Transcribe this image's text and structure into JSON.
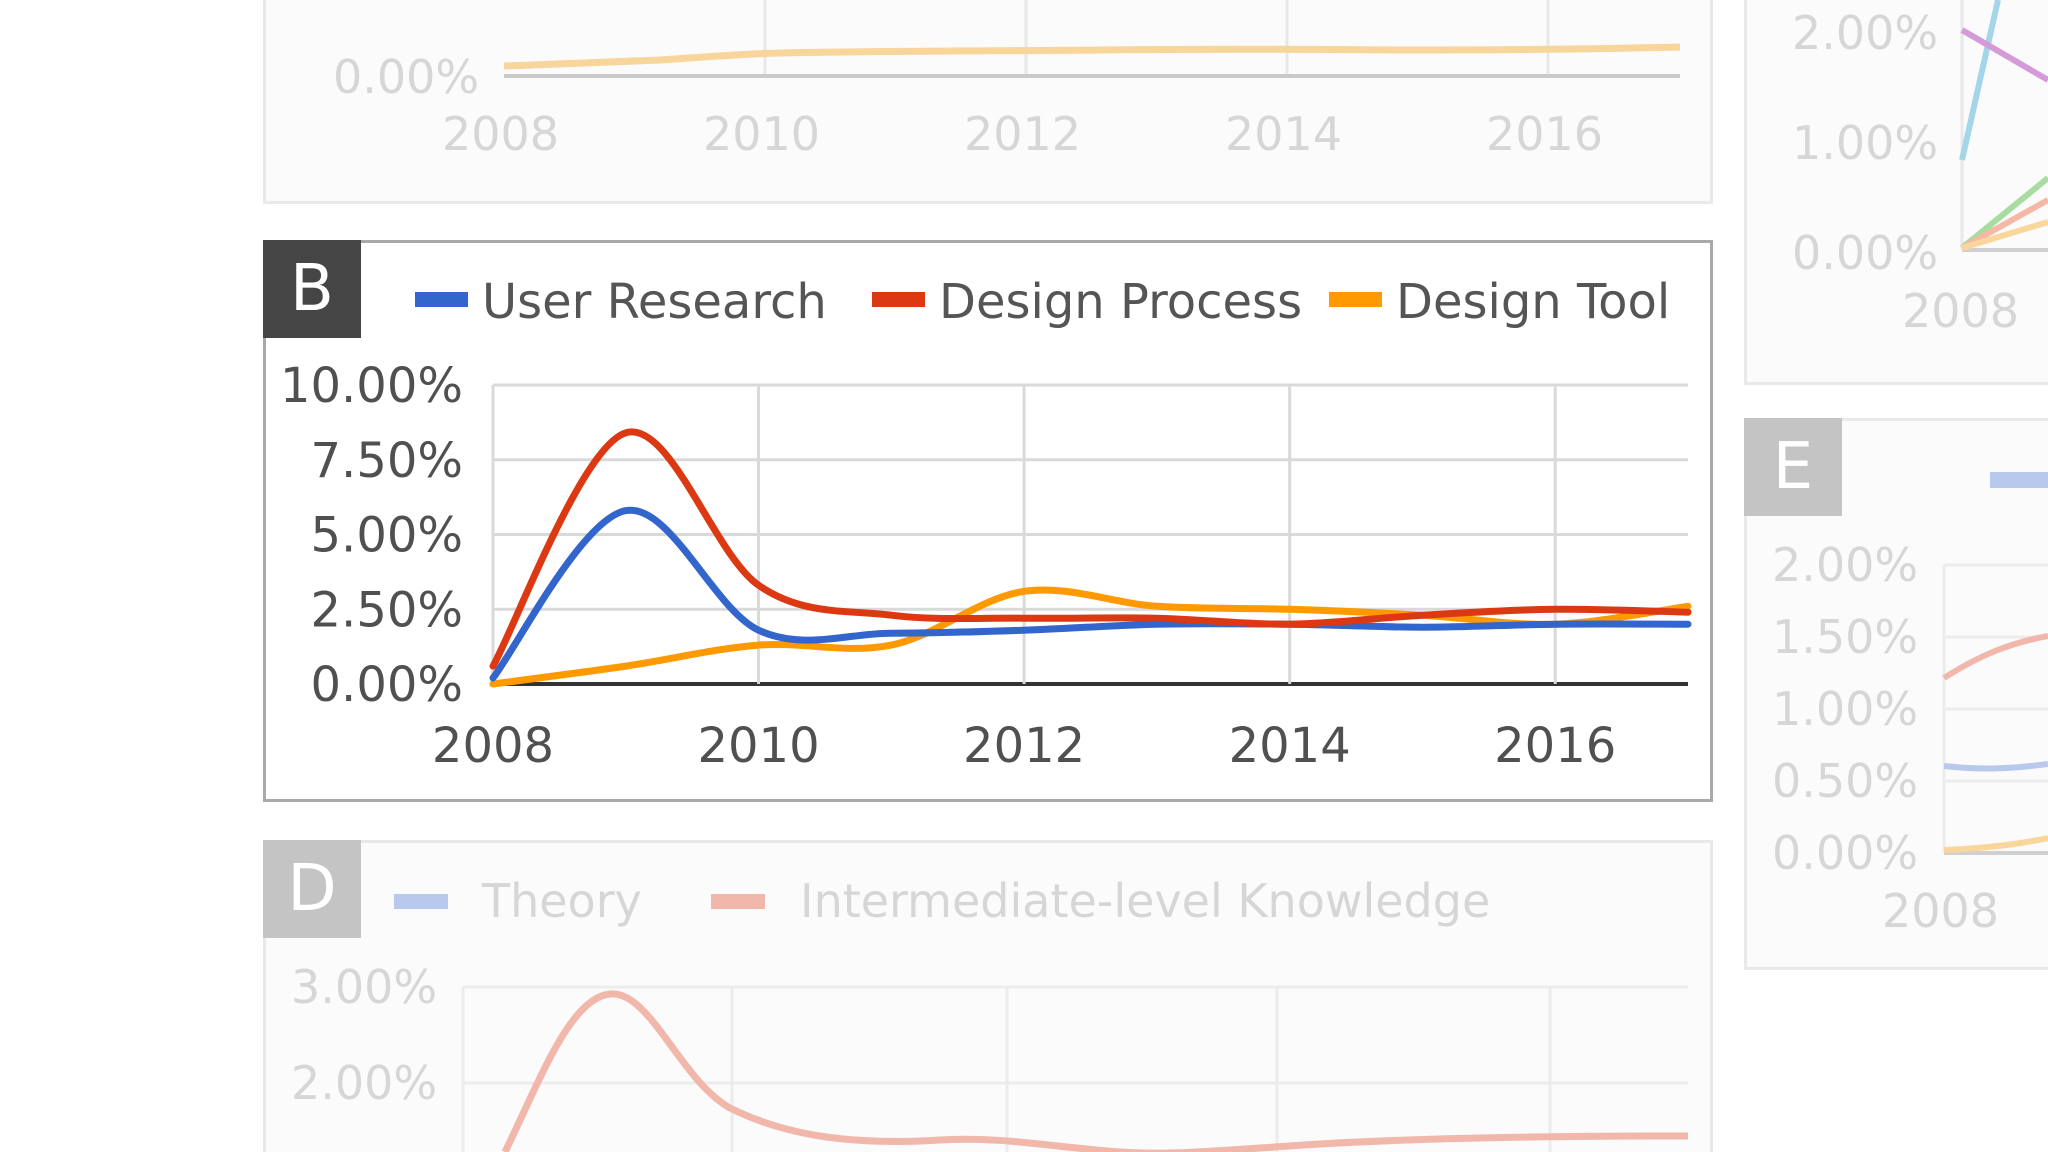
{
  "panel_a": {
    "ytick": "0.00%",
    "xticks": [
      "2008",
      "2010",
      "2012",
      "2014",
      "2016"
    ],
    "color": "#f8d59a"
  },
  "panel_b": {
    "letter": "B"
  },
  "panel_c": {
    "yticks": [
      "2.00%",
      "1.00%",
      "0.00%"
    ],
    "xtick": "2008"
  },
  "panel_d": {
    "letter": "D",
    "legend": [
      {
        "label": "Theory",
        "color": "#b9c9ee"
      },
      {
        "label": "Intermediate-level Knowledge",
        "color": "#f1b7ab"
      }
    ],
    "yticks": [
      "3.00%",
      "2.00%"
    ]
  },
  "panel_e": {
    "letter": "E",
    "yticks": [
      "2.00%",
      "1.50%",
      "1.00%",
      "0.50%",
      "0.00%"
    ],
    "xtick": "2008"
  },
  "chart_data": {
    "type": "line",
    "x": [
      2008,
      2009,
      2010,
      2011,
      2012,
      2013,
      2014,
      2015,
      2016,
      2017
    ],
    "series": [
      {
        "name": "User Research",
        "color": "#3366cc",
        "values": [
          0.2,
          5.8,
          1.8,
          1.7,
          1.8,
          2.0,
          2.0,
          1.9,
          2.0,
          2.0
        ]
      },
      {
        "name": "Design Process",
        "color": "#dc3912",
        "values": [
          0.6,
          8.4,
          3.3,
          2.3,
          2.2,
          2.2,
          2.0,
          2.3,
          2.5,
          2.4
        ]
      },
      {
        "name": "Design Tool",
        "color": "#ff9900",
        "values": [
          0.0,
          0.6,
          1.3,
          1.3,
          3.1,
          2.6,
          2.5,
          2.3,
          2.0,
          2.6
        ]
      }
    ],
    "yticks": [
      "0.00%",
      "2.50%",
      "5.00%",
      "7.50%",
      "10.00%"
    ],
    "xticks": [
      "2008",
      "2010",
      "2012",
      "2014",
      "2016"
    ],
    "ylim": [
      0,
      10
    ],
    "xlim": [
      2008,
      2017
    ],
    "grid": true,
    "legend_position": "top"
  }
}
